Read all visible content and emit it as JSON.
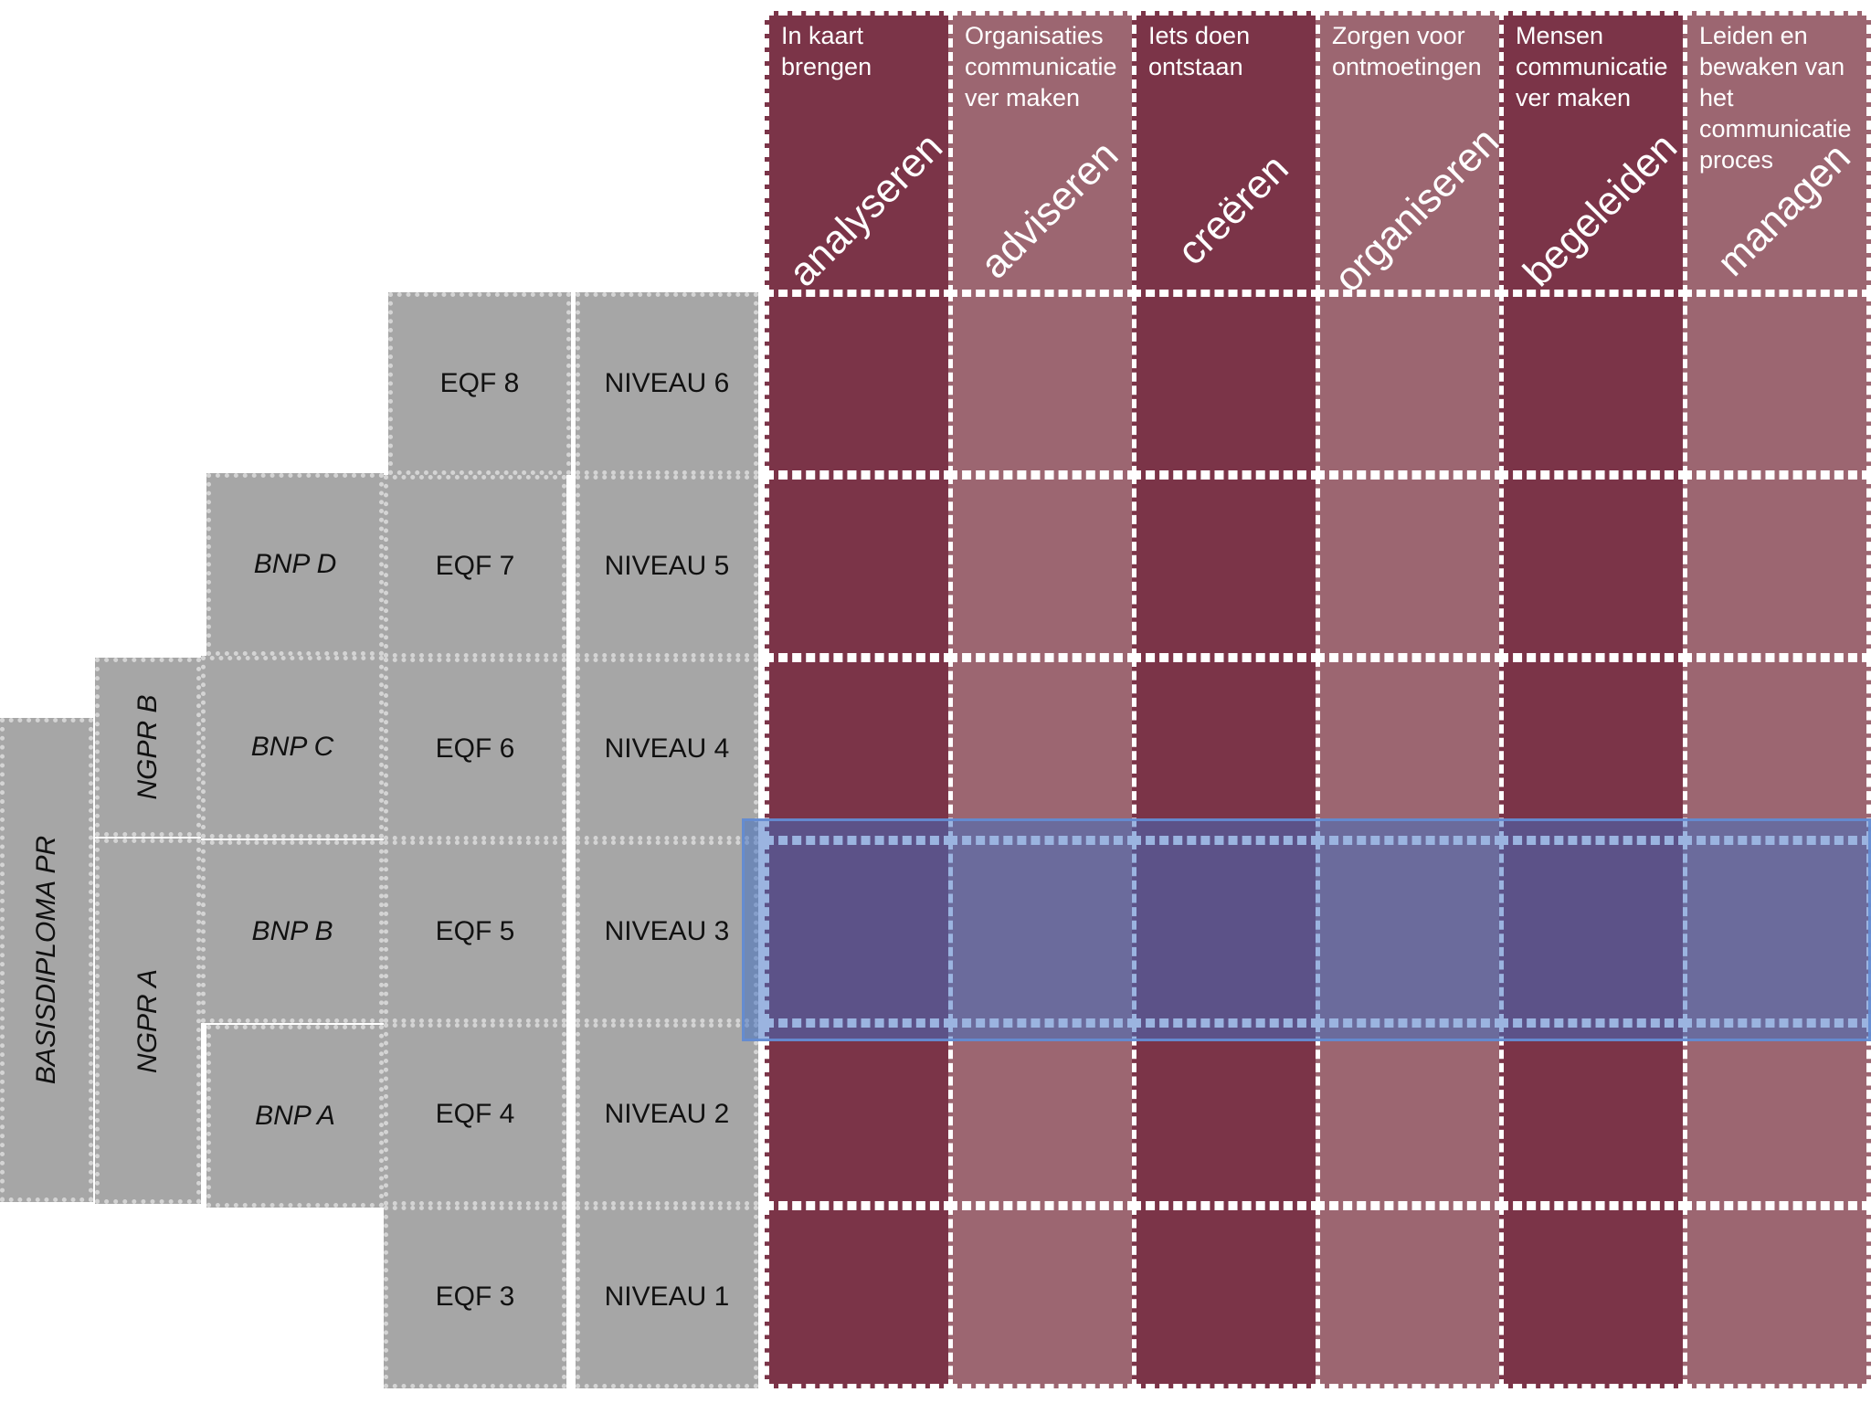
{
  "columns": [
    {
      "verb": "analyseren",
      "description": "In kaart\nbrengen"
    },
    {
      "verb": "adviseren",
      "description": "Organisaties\ncommunicatie\nver maken"
    },
    {
      "verb": "creëren",
      "description": "Iets doen\nontstaan"
    },
    {
      "verb": "organiseren",
      "description": "Zorgen voor\nontmoetingen"
    },
    {
      "verb": "begeleiden",
      "description": "Mensen\ncommunicatie\nver maken"
    },
    {
      "verb": "managen",
      "description": "Leiden en\nbewaken van\nhet\ncommunicatie\nproces"
    }
  ],
  "niveau_labels": [
    "NIVEAU 6",
    "NIVEAU 5",
    "NIVEAU 4",
    "NIVEAU 3",
    "NIVEAU 2",
    "NIVEAU 1"
  ],
  "eqf_labels": [
    "EQF 8",
    "EQF 7",
    "EQF 6",
    "EQF 5",
    "EQF 4",
    "EQF 3"
  ],
  "bnp_labels": [
    "BNP D",
    "BNP C",
    "BNP B",
    "BNP A"
  ],
  "ngpr_labels": [
    "NGPR B",
    "NGPR A"
  ],
  "basis_label": "BASISDIPLOMA PR",
  "highlighted_level": "NIVEAU 3",
  "colors": {
    "dark_column": "#7b3448",
    "light_column": "#9c6671",
    "gray_box": "#a6a6a6",
    "highlight": "#4070c4"
  }
}
